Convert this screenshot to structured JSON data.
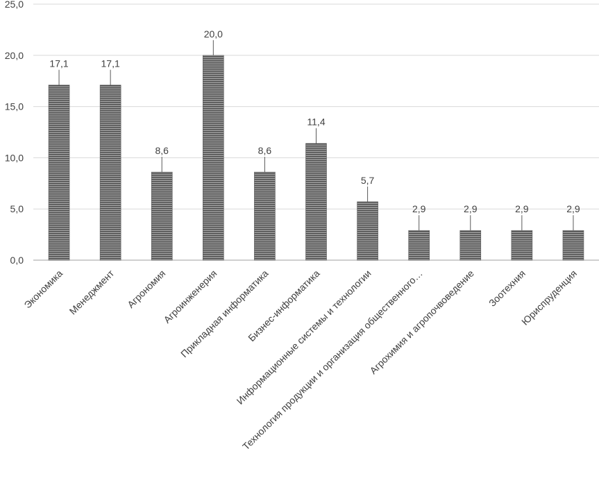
{
  "chart_data": {
    "type": "bar",
    "categories": [
      "Экономика",
      "Менеджмент",
      "Агрономия",
      "Агроинженерия",
      "Прикладная информатика",
      "Бизнес-информатика",
      "Информационные системы и технологии",
      "Технология продукции и организация общественного…",
      "Агрохимия и агропочвоведение",
      "Зоотехния",
      "Юриспруденция"
    ],
    "values": [
      17.1,
      17.1,
      8.6,
      20.0,
      8.6,
      11.4,
      5.7,
      2.9,
      2.9,
      2.9,
      2.9
    ],
    "value_labels": [
      "17,1",
      "17,1",
      "8,6",
      "20,0",
      "8,6",
      "11,4",
      "5,7",
      "2,9",
      "2,9",
      "2,9",
      "2,9"
    ],
    "ylim": [
      0,
      25
    ],
    "y_ticks": [
      0,
      5,
      10,
      15,
      20,
      25
    ],
    "y_tick_labels": [
      "0,0",
      "5,0",
      "10,0",
      "15,0",
      "20,0",
      "25,0"
    ],
    "grid": true,
    "legend": "none",
    "colors": {
      "bar_fill": "#8c8c8c",
      "bar_stripe": "#4a4a4a",
      "grid": "#d9d9d9",
      "axis": "#bfbfbf",
      "text": "#404040"
    }
  }
}
